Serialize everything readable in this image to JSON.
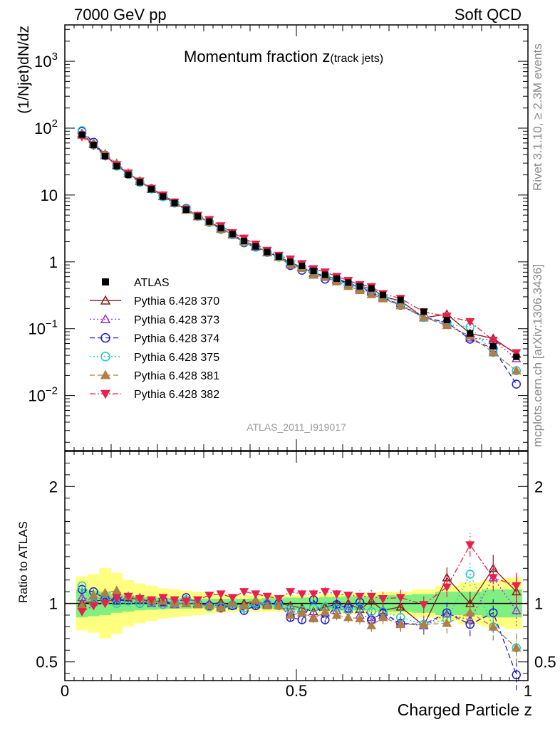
{
  "header": {
    "left_label": "7000 GeV pp",
    "right_label": "Soft QCD"
  },
  "side_labels": {
    "rivet": "Rivet 3.1.10, ≥ 2.3M events",
    "mcplots": "mcplots.cern.ch [arXiv:1306.3436]"
  },
  "chart_data": [
    {
      "type": "scatter",
      "panel": "main",
      "title_main": "Momentum fraction z",
      "title_sub": "(track jets)",
      "ylabel": "(1/Njet)dN/dz",
      "yscale": "log",
      "ylim": [
        0.0015,
        3500
      ],
      "xlim": [
        0,
        1
      ],
      "yticklabels": [
        {
          "value": 1000,
          "base": "10",
          "exp": "3"
        },
        {
          "value": 100,
          "base": "10",
          "exp": "2"
        },
        {
          "value": 10,
          "base": "10",
          "exp": ""
        },
        {
          "value": 1,
          "base": "1",
          "exp": ""
        },
        {
          "value": 0.1,
          "base": "10",
          "exp": "−1"
        },
        {
          "value": 0.01,
          "base": "10",
          "exp": "−2"
        }
      ],
      "watermark": "ATLAS_2011_I919017",
      "legend_position": "lower-left",
      "x": [
        0.037,
        0.062,
        0.087,
        0.112,
        0.137,
        0.162,
        0.187,
        0.212,
        0.237,
        0.262,
        0.287,
        0.312,
        0.337,
        0.362,
        0.387,
        0.412,
        0.437,
        0.462,
        0.487,
        0.512,
        0.537,
        0.562,
        0.587,
        0.612,
        0.637,
        0.662,
        0.687,
        0.725,
        0.775,
        0.825,
        0.875,
        0.925,
        0.975
      ],
      "data": {
        "name": "ATLAS",
        "values": [
          80,
          56,
          38,
          27,
          20,
          15.5,
          12.2,
          9.5,
          7.6,
          6.0,
          4.8,
          4.0,
          3.2,
          2.6,
          2.05,
          1.7,
          1.4,
          1.2,
          1.0,
          0.87,
          0.73,
          0.64,
          0.56,
          0.49,
          0.43,
          0.4,
          0.32,
          0.27,
          0.18,
          0.135,
          0.085,
          0.055,
          0.038
        ]
      },
      "mc_series": [
        {
          "name": "Pythia 6.428 370",
          "color": "#8b1a1a",
          "marker": "triangle-up-open",
          "dash": "solid",
          "ratios": [
            1.0,
            1.02,
            1.03,
            1.02,
            1.05,
            1.03,
            1.02,
            1.01,
            1.0,
            1.0,
            1.0,
            0.99,
            1.01,
            0.98,
            1.0,
            1.02,
            0.99,
            1.0,
            0.98,
            0.96,
            0.93,
            0.97,
            0.99,
            1.0,
            0.95,
            1.02,
            0.94,
            0.97,
            0.81,
            1.22,
            1.0,
            1.3,
            1.1
          ]
        },
        {
          "name": "Pythia 6.428 373",
          "color": "#9932cc",
          "marker": "triangle-up-open",
          "dash": "dotted",
          "ratios": [
            1.05,
            1.03,
            1.05,
            1.04,
            1.06,
            1.05,
            1.0,
            1.0,
            0.99,
            1.0,
            0.99,
            1.0,
            0.97,
            1.0,
            0.98,
            0.99,
            1.0,
            0.98,
            0.93,
            0.92,
            0.88,
            0.92,
            0.94,
            0.95,
            0.9,
            0.88,
            0.9,
            0.83,
            0.81,
            0.91,
            0.86,
            1.22,
            0.94
          ]
        },
        {
          "name": "Pythia 6.428 374",
          "color": "#1c1cd0",
          "marker": "circle-open",
          "dash": "dashed",
          "ratios": [
            1.12,
            1.1,
            1.04,
            1.03,
            1.02,
            1.0,
            1.02,
            1.02,
            1.0,
            1.05,
            1.0,
            0.98,
            0.96,
            0.98,
            0.94,
            0.98,
            0.99,
            1.0,
            0.88,
            0.86,
            1.03,
            0.86,
            0.99,
            0.96,
            1.01,
            0.86,
            0.92,
            0.83,
            0.82,
            0.92,
            0.82,
            0.92,
            0.39
          ]
        },
        {
          "name": "Pythia 6.428 375",
          "color": "#1fc8c8",
          "marker": "circle-open",
          "dash": "dotted",
          "ratios": [
            1.15,
            1.0,
            1.02,
            1.0,
            1.02,
            1.0,
            1.01,
            0.99,
            1.0,
            1.03,
            1.0,
            0.97,
            0.97,
            0.99,
            0.96,
            1.0,
            1.0,
            0.98,
            0.95,
            0.94,
            0.96,
            0.97,
            0.96,
            0.94,
            0.96,
            0.93,
            0.93,
            0.88,
            0.82,
            0.86,
            1.25,
            0.8,
            0.62
          ]
        },
        {
          "name": "Pythia 6.428 381",
          "color": "#b07f45",
          "marker": "triangle-up-filled",
          "dash": "dashed",
          "ratios": [
            0.98,
            1.07,
            1.09,
            1.11,
            1.06,
            1.05,
            1.02,
            1.02,
            1.0,
            1.0,
            0.99,
            0.98,
            0.96,
            1.0,
            0.98,
            1.03,
            0.98,
            0.98,
            0.9,
            0.92,
            0.87,
            0.93,
            0.9,
            0.88,
            0.87,
            0.81,
            0.88,
            0.82,
            0.82,
            0.83,
            0.92,
            0.8,
            0.62
          ]
        },
        {
          "name": "Pythia 6.428 382",
          "color": "#e8204a",
          "marker": "triangle-down-filled",
          "dash": "dashdot",
          "ratios": [
            0.93,
            0.98,
            1.0,
            1.05,
            1.06,
            1.04,
            1.03,
            1.05,
            1.03,
            1.02,
            1.03,
            1.07,
            1.08,
            1.05,
            1.1,
            1.08,
            1.06,
            1.04,
            1.1,
            1.08,
            1.08,
            1.1,
            1.08,
            1.07,
            1.06,
            1.06,
            1.04,
            1.05,
            0.99,
            1.14,
            1.5,
            1.22,
            1.15
          ]
        }
      ]
    },
    {
      "type": "scatter",
      "panel": "ratio",
      "ylabel": "Ratio to ATLAS",
      "xlabel": "Charged Particle z",
      "ylim": [
        0.34,
        2.3
      ],
      "xlim": [
        0,
        1
      ],
      "yticks": [
        0.5,
        1,
        2
      ],
      "yticklabels": [
        "0.5",
        "1",
        "2"
      ],
      "xticks": [
        0,
        0.5,
        1
      ],
      "xticklabels": [
        "0",
        "0.5",
        "1"
      ],
      "band_inner": [
        0.12,
        0.11,
        0.1,
        0.08,
        0.07,
        0.06,
        0.055,
        0.05,
        0.045,
        0.045,
        0.04,
        0.04,
        0.04,
        0.04,
        0.04,
        0.04,
        0.045,
        0.045,
        0.05,
        0.05,
        0.05,
        0.055,
        0.055,
        0.06,
        0.06,
        0.06,
        0.07,
        0.07,
        0.08,
        0.1,
        0.1,
        0.12,
        0.12
      ],
      "band_outer": [
        0.23,
        0.25,
        0.3,
        0.26,
        0.2,
        0.17,
        0.15,
        0.13,
        0.12,
        0.11,
        0.1,
        0.09,
        0.08,
        0.07,
        0.07,
        0.07,
        0.07,
        0.07,
        0.07,
        0.07,
        0.07,
        0.08,
        0.08,
        0.09,
        0.09,
        0.09,
        0.1,
        0.1,
        0.12,
        0.15,
        0.18,
        0.2,
        0.22
      ],
      "colors": {
        "band_outer": "#ffff80",
        "band_inner": "#7ff07f"
      }
    }
  ]
}
